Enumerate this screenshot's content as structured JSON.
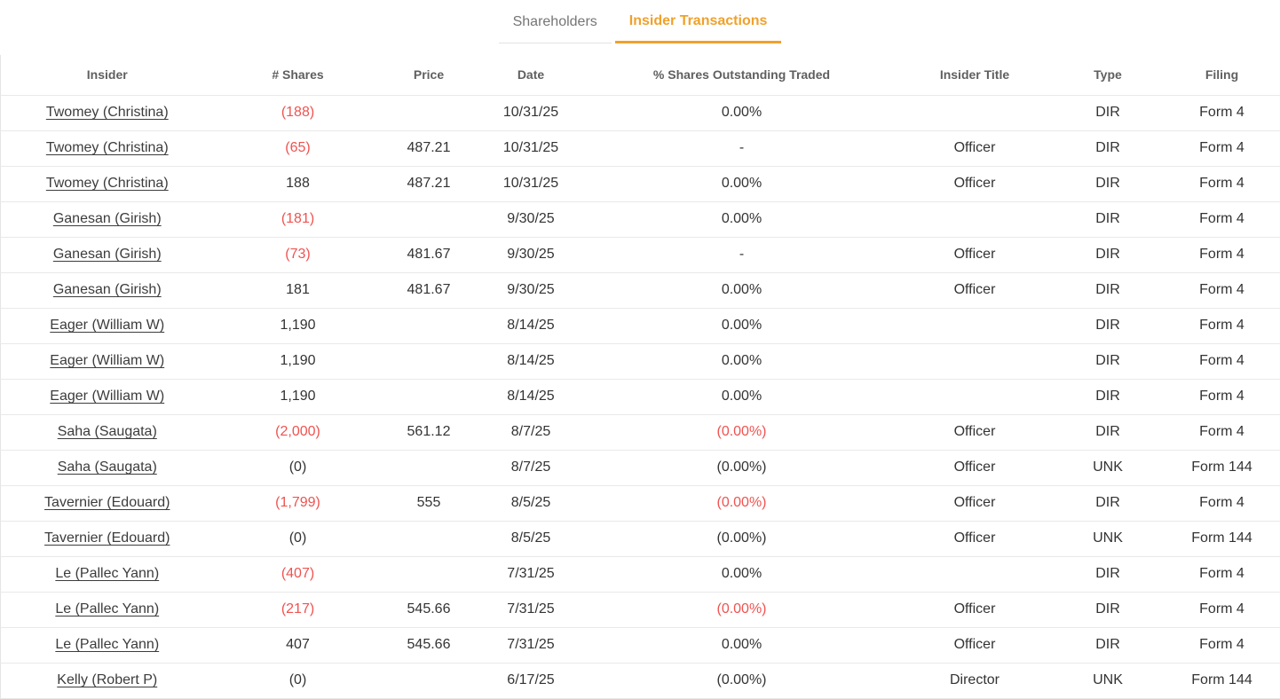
{
  "tab_bar": {
    "tabs": [
      {
        "label": "Shareholders",
        "active": false
      },
      {
        "label": "Insider Transactions",
        "active": true
      }
    ]
  },
  "colors": {
    "accent_orange": "#f0a12b",
    "negative_red": "#ef5350"
  },
  "table": {
    "columns": [
      "Insider",
      "# Shares",
      "Price",
      "Date",
      "% Shares Outstanding Traded",
      "Insider Title",
      "Type",
      "Filing"
    ],
    "rows": [
      {
        "insider": "Twomey (Christina)",
        "shares": "(188)",
        "shares_negative": true,
        "price": "",
        "date": "10/31/25",
        "pct": "0.00%",
        "pct_negative": false,
        "insider_title": "",
        "type": "DIR",
        "filing": "Form 4"
      },
      {
        "insider": "Twomey (Christina)",
        "shares": "(65)",
        "shares_negative": true,
        "price": "487.21",
        "date": "10/31/25",
        "pct": "-",
        "pct_negative": false,
        "insider_title": "Officer",
        "type": "DIR",
        "filing": "Form 4"
      },
      {
        "insider": "Twomey (Christina)",
        "shares": "188",
        "shares_negative": false,
        "price": "487.21",
        "date": "10/31/25",
        "pct": "0.00%",
        "pct_negative": false,
        "insider_title": "Officer",
        "type": "DIR",
        "filing": "Form 4"
      },
      {
        "insider": "Ganesan (Girish)",
        "shares": "(181)",
        "shares_negative": true,
        "price": "",
        "date": "9/30/25",
        "pct": "0.00%",
        "pct_negative": false,
        "insider_title": "",
        "type": "DIR",
        "filing": "Form 4"
      },
      {
        "insider": "Ganesan (Girish)",
        "shares": "(73)",
        "shares_negative": true,
        "price": "481.67",
        "date": "9/30/25",
        "pct": "-",
        "pct_negative": false,
        "insider_title": "Officer",
        "type": "DIR",
        "filing": "Form 4"
      },
      {
        "insider": "Ganesan (Girish)",
        "shares": "181",
        "shares_negative": false,
        "price": "481.67",
        "date": "9/30/25",
        "pct": "0.00%",
        "pct_negative": false,
        "insider_title": "Officer",
        "type": "DIR",
        "filing": "Form 4"
      },
      {
        "insider": "Eager (William W)",
        "shares": "1,190",
        "shares_negative": false,
        "price": "",
        "date": "8/14/25",
        "pct": "0.00%",
        "pct_negative": false,
        "insider_title": "",
        "type": "DIR",
        "filing": "Form 4"
      },
      {
        "insider": "Eager (William W)",
        "shares": "1,190",
        "shares_negative": false,
        "price": "",
        "date": "8/14/25",
        "pct": "0.00%",
        "pct_negative": false,
        "insider_title": "",
        "type": "DIR",
        "filing": "Form 4"
      },
      {
        "insider": "Eager (William W)",
        "shares": "1,190",
        "shares_negative": false,
        "price": "",
        "date": "8/14/25",
        "pct": "0.00%",
        "pct_negative": false,
        "insider_title": "",
        "type": "DIR",
        "filing": "Form 4"
      },
      {
        "insider": "Saha (Saugata)",
        "shares": "(2,000)",
        "shares_negative": true,
        "price": "561.12",
        "date": "8/7/25",
        "pct": "(0.00%)",
        "pct_negative": true,
        "insider_title": "Officer",
        "type": "DIR",
        "filing": "Form 4"
      },
      {
        "insider": "Saha (Saugata)",
        "shares": "(0)",
        "shares_negative": false,
        "price": "",
        "date": "8/7/25",
        "pct": "(0.00%)",
        "pct_negative": false,
        "insider_title": "Officer",
        "type": "UNK",
        "filing": "Form 144"
      },
      {
        "insider": "Tavernier (Edouard)",
        "shares": "(1,799)",
        "shares_negative": true,
        "price": "555",
        "date": "8/5/25",
        "pct": "(0.00%)",
        "pct_negative": true,
        "insider_title": "Officer",
        "type": "DIR",
        "filing": "Form 4"
      },
      {
        "insider": "Tavernier (Edouard)",
        "shares": "(0)",
        "shares_negative": false,
        "price": "",
        "date": "8/5/25",
        "pct": "(0.00%)",
        "pct_negative": false,
        "insider_title": "Officer",
        "type": "UNK",
        "filing": "Form 144"
      },
      {
        "insider": "Le (Pallec Yann)",
        "shares": "(407)",
        "shares_negative": true,
        "price": "",
        "date": "7/31/25",
        "pct": "0.00%",
        "pct_negative": false,
        "insider_title": "",
        "type": "DIR",
        "filing": "Form 4"
      },
      {
        "insider": "Le (Pallec Yann)",
        "shares": "(217)",
        "shares_negative": true,
        "price": "545.66",
        "date": "7/31/25",
        "pct": "(0.00%)",
        "pct_negative": true,
        "insider_title": "Officer",
        "type": "DIR",
        "filing": "Form 4"
      },
      {
        "insider": "Le (Pallec Yann)",
        "shares": "407",
        "shares_negative": false,
        "price": "545.66",
        "date": "7/31/25",
        "pct": "0.00%",
        "pct_negative": false,
        "insider_title": "Officer",
        "type": "DIR",
        "filing": "Form 4"
      },
      {
        "insider": "Kelly (Robert P)",
        "shares": "(0)",
        "shares_negative": false,
        "price": "",
        "date": "6/17/25",
        "pct": "(0.00%)",
        "pct_negative": false,
        "insider_title": "Director",
        "type": "UNK",
        "filing": "Form 144"
      }
    ]
  }
}
